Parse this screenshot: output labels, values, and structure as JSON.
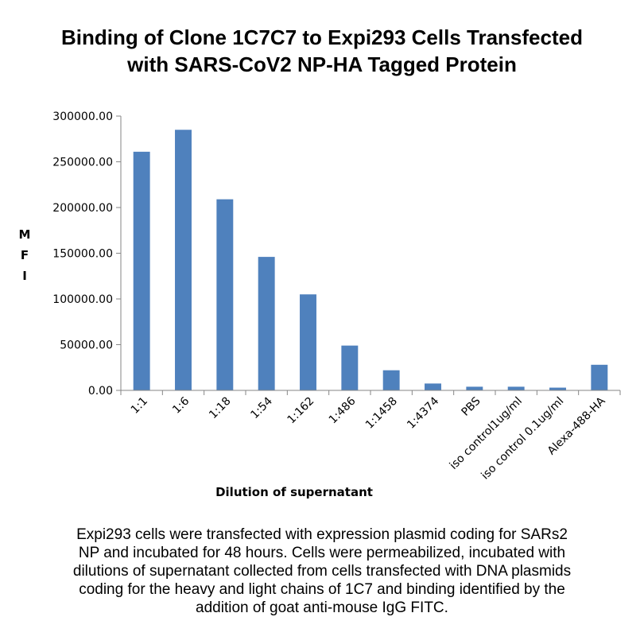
{
  "chart_data": {
    "type": "bar",
    "title": [
      "Binding of Clone 1C7C7 to Expi293 Cells Transfected",
      "with SARS-CoV2 NP-HA Tagged Protein"
    ],
    "ylabel_letters": [
      "M",
      "F",
      "I"
    ],
    "xlabel": "Dilution of supernatant",
    "categories": [
      "1:1",
      "1:6",
      "1:18",
      "1:54",
      "1:162",
      "1:486",
      "1:1458",
      "1:4374",
      "PBS",
      "iso control1ug/ml",
      "iso control 0.1ug/ml",
      "Alexa-488-HA"
    ],
    "values": [
      261000,
      285000,
      209000,
      146000,
      105000,
      49000,
      22000,
      7500,
      4000,
      4000,
      3000,
      28000
    ],
    "ylim": [
      0,
      300000
    ],
    "yticks": [
      "0.00",
      "50000.00",
      "100000.00",
      "150000.00",
      "200000.00",
      "250000.00",
      "300000.00"
    ],
    "bar_color": "#4f81bd",
    "grid": false,
    "legend": "none"
  },
  "caption": [
    "Expi293 cells were transfected with expression plasmid coding for SARs2",
    "NP and incubated for 48 hours. Cells were permeabilized, incubated with",
    "dilutions of supernatant collected from cells transfected with DNA plasmids",
    "coding for the heavy and light chains of 1C7 and binding identified by the",
    "addition of goat anti-mouse IgG FITC."
  ]
}
